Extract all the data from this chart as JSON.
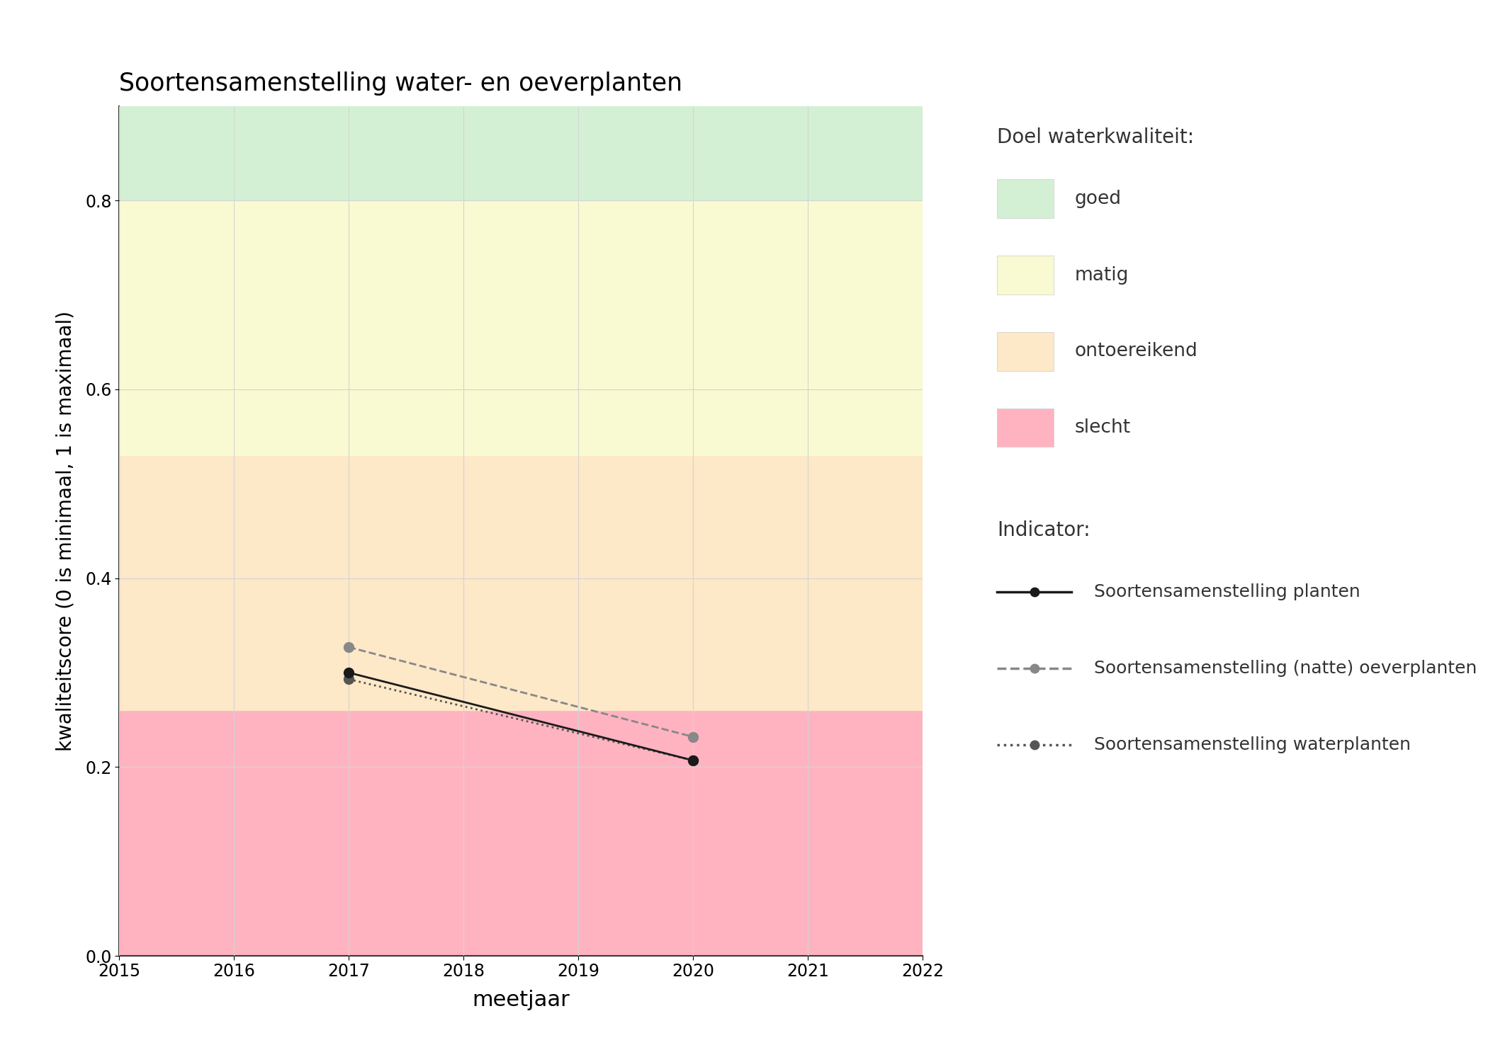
{
  "title": "Soortensamenstelling water- en oeverplanten",
  "xlabel": "meetjaar",
  "ylabel": "kwaliteitscore (0 is minimaal, 1 is maximaal)",
  "xlim": [
    2015,
    2022
  ],
  "ylim": [
    0,
    0.9
  ],
  "xticks": [
    2015,
    2016,
    2017,
    2018,
    2019,
    2020,
    2021,
    2022
  ],
  "yticks": [
    0.0,
    0.2,
    0.4,
    0.6,
    0.8
  ],
  "bg_color": "#ffffff",
  "bands": [
    {
      "ymin": 0.0,
      "ymax": 0.26,
      "color": "#ffb3c1",
      "label": "slecht"
    },
    {
      "ymin": 0.26,
      "ymax": 0.53,
      "color": "#fde8c8",
      "label": "ontoereikend"
    },
    {
      "ymin": 0.53,
      "ymax": 0.8,
      "color": "#fafad2",
      "label": "matig"
    },
    {
      "ymin": 0.8,
      "ymax": 0.9,
      "color": "#d4f0d4",
      "label": "goed"
    }
  ],
  "series": [
    {
      "name": "Soortensamenstelling planten",
      "x": [
        2017,
        2020
      ],
      "y": [
        0.3,
        0.207
      ],
      "color": "#1a1a1a",
      "linestyle": "solid",
      "linewidth": 2.0,
      "marker": "o",
      "markersize": 10,
      "zorder": 5
    },
    {
      "name": "Soortensamenstelling (natte) oeverplanten",
      "x": [
        2017,
        2020
      ],
      "y": [
        0.327,
        0.232
      ],
      "color": "#888888",
      "linestyle": "dashed",
      "linewidth": 2.0,
      "marker": "o",
      "markersize": 10,
      "zorder": 4
    },
    {
      "name": "Soortensamenstelling waterplanten",
      "x": [
        2017,
        2020
      ],
      "y": [
        0.293,
        0.207
      ],
      "color": "#555555",
      "linestyle": "dotted",
      "linewidth": 2.0,
      "marker": "o",
      "markersize": 10,
      "zorder": 3
    }
  ],
  "legend_title_doel": "Doel waterkwaliteit:",
  "legend_title_indicator": "Indicator:",
  "band_labels_ordered": [
    "goed",
    "matig",
    "ontoereikend",
    "slecht"
  ],
  "band_colors": {
    "goed": "#d4f0d4",
    "matig": "#fafad2",
    "ontoereikend": "#fde8c8",
    "slecht": "#ffb3c1"
  },
  "grid_color": "#d4d4d4",
  "grid_alpha": 1.0,
  "grid_linewidth": 0.8
}
